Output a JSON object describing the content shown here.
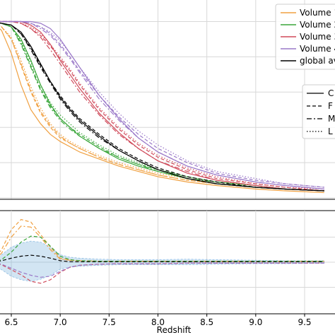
{
  "chart_data": [
    {
      "type": "line",
      "panel": "main",
      "xlim": [
        6.3,
        9.7
      ],
      "ylim": [
        0.0,
        1.05
      ],
      "grid": true,
      "xticks": [
        6.5,
        7.0,
        7.5,
        8.0,
        8.5,
        9.0,
        9.5
      ],
      "legend_colors": {
        "title": "top-right",
        "entries": [
          {
            "label": "Volume 1",
            "color": "#f0a040",
            "style": "solid"
          },
          {
            "label": "Volume 2",
            "color": "#3aa63a",
            "style": "solid"
          },
          {
            "label": "Volume 3",
            "color": "#d04a5a",
            "style": "solid"
          },
          {
            "label": "Volume 4",
            "color": "#9a78c8",
            "style": "solid"
          },
          {
            "label": "global av",
            "color": "#000000",
            "style": "solid"
          }
        ]
      },
      "legend_styles": {
        "placement": "right",
        "entries": [
          {
            "label": "C",
            "style": "solid"
          },
          {
            "label": "F",
            "style": "dashed"
          },
          {
            "label": "M",
            "style": "dashdot"
          },
          {
            "label": "L",
            "style": "dotted"
          }
        ]
      },
      "x": [
        6.3,
        6.4,
        6.5,
        6.6,
        6.7,
        6.8,
        6.9,
        7.0,
        7.1,
        7.2,
        7.4,
        7.6,
        7.8,
        8.0,
        8.3,
        8.6,
        9.0,
        9.3,
        9.7
      ],
      "series": [
        {
          "group": "Volume 1",
          "color": "#f0a040",
          "dash": "solid",
          "values": [
            1.0,
            0.95,
            0.82,
            0.64,
            0.5,
            0.42,
            0.36,
            0.32,
            0.29,
            0.26,
            0.22,
            0.18,
            0.15,
            0.12,
            0.09,
            0.07,
            0.05,
            0.04,
            0.03
          ]
        },
        {
          "group": "Volume 1",
          "color": "#f0a040",
          "dash": "dashed",
          "values": [
            1.0,
            0.97,
            0.9,
            0.75,
            0.6,
            0.48,
            0.4,
            0.34,
            0.31,
            0.28,
            0.23,
            0.19,
            0.16,
            0.13,
            0.1,
            0.08,
            0.06,
            0.05,
            0.04
          ]
        },
        {
          "group": "Volume 1",
          "color": "#f0a040",
          "dash": "dashdot",
          "values": [
            1.0,
            0.97,
            0.9,
            0.76,
            0.61,
            0.49,
            0.41,
            0.35,
            0.31,
            0.28,
            0.23,
            0.19,
            0.16,
            0.13,
            0.1,
            0.08,
            0.06,
            0.05,
            0.04
          ]
        },
        {
          "group": "Volume 1",
          "color": "#f0a040",
          "dash": "dotted",
          "values": [
            1.0,
            0.97,
            0.91,
            0.78,
            0.63,
            0.51,
            0.42,
            0.36,
            0.32,
            0.29,
            0.24,
            0.2,
            0.17,
            0.14,
            0.11,
            0.09,
            0.07,
            0.05,
            0.04
          ]
        },
        {
          "group": "Volume 2",
          "color": "#3aa63a",
          "dash": "solid",
          "values": [
            1.0,
            0.99,
            0.97,
            0.9,
            0.78,
            0.64,
            0.53,
            0.45,
            0.4,
            0.35,
            0.28,
            0.22,
            0.18,
            0.15,
            0.11,
            0.08,
            0.06,
            0.05,
            0.04
          ]
        },
        {
          "group": "Volume 2",
          "color": "#3aa63a",
          "dash": "dashed",
          "values": [
            1.0,
            0.99,
            0.97,
            0.88,
            0.75,
            0.62,
            0.52,
            0.45,
            0.4,
            0.36,
            0.29,
            0.23,
            0.19,
            0.16,
            0.12,
            0.09,
            0.07,
            0.05,
            0.04
          ]
        },
        {
          "group": "Volume 2",
          "color": "#3aa63a",
          "dash": "dashdot",
          "values": [
            1.0,
            0.99,
            0.97,
            0.87,
            0.74,
            0.61,
            0.51,
            0.44,
            0.39,
            0.35,
            0.28,
            0.23,
            0.19,
            0.15,
            0.11,
            0.09,
            0.06,
            0.05,
            0.04
          ]
        },
        {
          "group": "Volume 2",
          "color": "#3aa63a",
          "dash": "dotted",
          "values": [
            1.0,
            0.99,
            0.97,
            0.89,
            0.77,
            0.64,
            0.54,
            0.47,
            0.42,
            0.37,
            0.3,
            0.24,
            0.2,
            0.16,
            0.12,
            0.09,
            0.07,
            0.05,
            0.04
          ]
        },
        {
          "group": "Volume 3",
          "color": "#d04a5a",
          "dash": "solid",
          "values": [
            1.0,
            1.0,
            1.0,
            1.0,
            0.98,
            0.94,
            0.87,
            0.78,
            0.7,
            0.62,
            0.48,
            0.37,
            0.28,
            0.21,
            0.14,
            0.1,
            0.07,
            0.05,
            0.04
          ]
        },
        {
          "group": "Volume 3",
          "color": "#d04a5a",
          "dash": "dashed",
          "values": [
            1.0,
            1.0,
            1.0,
            0.99,
            0.96,
            0.92,
            0.86,
            0.79,
            0.72,
            0.64,
            0.5,
            0.39,
            0.3,
            0.23,
            0.16,
            0.11,
            0.08,
            0.06,
            0.04
          ]
        },
        {
          "group": "Volume 3",
          "color": "#d04a5a",
          "dash": "dashdot",
          "values": [
            1.0,
            1.0,
            1.0,
            0.99,
            0.96,
            0.91,
            0.84,
            0.76,
            0.68,
            0.6,
            0.47,
            0.36,
            0.28,
            0.21,
            0.15,
            0.1,
            0.07,
            0.05,
            0.04
          ]
        },
        {
          "group": "Volume 3",
          "color": "#d04a5a",
          "dash": "dotted",
          "values": [
            1.0,
            1.0,
            1.0,
            0.99,
            0.97,
            0.93,
            0.87,
            0.8,
            0.73,
            0.65,
            0.51,
            0.4,
            0.31,
            0.24,
            0.17,
            0.12,
            0.08,
            0.06,
            0.05
          ]
        },
        {
          "group": "Volume 4",
          "color": "#9a78c8",
          "dash": "solid",
          "values": [
            1.0,
            1.0,
            1.0,
            1.0,
            1.0,
            0.99,
            0.96,
            0.9,
            0.82,
            0.74,
            0.58,
            0.45,
            0.34,
            0.26,
            0.18,
            0.13,
            0.09,
            0.07,
            0.05
          ]
        },
        {
          "group": "Volume 4",
          "color": "#9a78c8",
          "dash": "dashed",
          "values": [
            1.0,
            1.0,
            1.0,
            1.0,
            0.99,
            0.97,
            0.93,
            0.87,
            0.8,
            0.72,
            0.58,
            0.46,
            0.36,
            0.28,
            0.2,
            0.14,
            0.1,
            0.08,
            0.06
          ]
        },
        {
          "group": "Volume 4",
          "color": "#9a78c8",
          "dash": "dashdot",
          "values": [
            1.0,
            1.0,
            1.0,
            1.0,
            0.99,
            0.96,
            0.92,
            0.86,
            0.79,
            0.71,
            0.56,
            0.44,
            0.34,
            0.26,
            0.18,
            0.13,
            0.09,
            0.07,
            0.05
          ]
        },
        {
          "group": "Volume 4",
          "color": "#9a78c8",
          "dash": "dotted",
          "values": [
            1.0,
            1.0,
            1.0,
            1.0,
            0.99,
            0.97,
            0.94,
            0.89,
            0.82,
            0.74,
            0.6,
            0.48,
            0.38,
            0.3,
            0.21,
            0.15,
            0.11,
            0.08,
            0.06
          ]
        },
        {
          "group": "global av",
          "color": "#000000",
          "dash": "solid",
          "values": [
            1.0,
            0.99,
            0.98,
            0.94,
            0.86,
            0.76,
            0.66,
            0.57,
            0.5,
            0.44,
            0.35,
            0.27,
            0.21,
            0.16,
            0.11,
            0.08,
            0.06,
            0.05,
            0.04
          ]
        },
        {
          "group": "global av",
          "color": "#000000",
          "dash": "dashed",
          "values": [
            1.0,
            0.99,
            0.98,
            0.93,
            0.85,
            0.75,
            0.66,
            0.58,
            0.51,
            0.45,
            0.36,
            0.28,
            0.22,
            0.17,
            0.12,
            0.09,
            0.06,
            0.05,
            0.04
          ]
        },
        {
          "group": "global av",
          "color": "#000000",
          "dash": "dashdot",
          "values": [
            1.0,
            0.99,
            0.98,
            0.93,
            0.84,
            0.74,
            0.65,
            0.56,
            0.49,
            0.43,
            0.34,
            0.27,
            0.21,
            0.16,
            0.11,
            0.08,
            0.06,
            0.05,
            0.04
          ]
        }
      ]
    },
    {
      "type": "line",
      "panel": "residual",
      "xlabel": "Redshift",
      "xlim": [
        6.3,
        9.7
      ],
      "ylim": [
        -1.0,
        1.0
      ],
      "grid": true,
      "xticks": [
        6.5,
        7.0,
        7.5,
        8.0,
        8.5,
        9.0,
        9.5
      ],
      "x": [
        6.3,
        6.4,
        6.5,
        6.6,
        6.7,
        6.8,
        6.9,
        7.0,
        7.1,
        7.2,
        7.4,
        7.6,
        7.8,
        8.0,
        8.3,
        8.6,
        9.0,
        9.3,
        9.7
      ],
      "band": {
        "color": "#6aa8d8",
        "upper": [
          0.05,
          0.15,
          0.3,
          0.38,
          0.42,
          0.4,
          0.3,
          0.15,
          0.1,
          0.08,
          0.06,
          0.05,
          0.05,
          0.05,
          0.06,
          0.05,
          0.04,
          0.03,
          0.03
        ],
        "lower": [
          -0.05,
          -0.15,
          -0.28,
          -0.35,
          -0.38,
          -0.34,
          -0.26,
          -0.14,
          -0.1,
          -0.08,
          -0.06,
          -0.05,
          -0.05,
          -0.05,
          -0.05,
          -0.04,
          -0.03,
          -0.03,
          -0.02
        ]
      },
      "series": [
        {
          "group": "Volume 1",
          "color": "#f0a040",
          "dash": "dashed",
          "values": [
            0.0,
            0.25,
            0.65,
            0.85,
            0.8,
            0.55,
            0.3,
            0.08,
            0.04,
            0.03,
            0.02,
            0.02,
            0.02,
            0.02,
            0.02,
            0.02,
            0.02,
            0.02,
            0.02
          ]
        },
        {
          "group": "Volume 1",
          "color": "#f0a040",
          "dash": "dashdot",
          "values": [
            0.0,
            0.18,
            0.5,
            0.72,
            0.7,
            0.5,
            0.25,
            0.06,
            0.04,
            0.03,
            0.02,
            0.02,
            0.02,
            0.02,
            0.02,
            0.02,
            0.02,
            0.02,
            0.02
          ]
        },
        {
          "group": "Volume 2",
          "color": "#3aa63a",
          "dash": "dashed",
          "values": [
            0.0,
            0.05,
            0.2,
            0.4,
            0.52,
            0.5,
            0.32,
            0.12,
            0.05,
            0.03,
            0.02,
            0.02,
            0.02,
            0.02,
            0.02,
            0.02,
            0.02,
            0.02,
            0.02
          ]
        },
        {
          "group": "Volume 3",
          "color": "#d04a5a",
          "dash": "dashed",
          "values": [
            0.0,
            -0.05,
            -0.15,
            -0.25,
            -0.38,
            -0.42,
            -0.35,
            -0.2,
            -0.1,
            -0.06,
            -0.04,
            -0.03,
            -0.03,
            -0.03,
            -0.02,
            -0.02,
            -0.02,
            -0.02,
            -0.02
          ]
        },
        {
          "group": "Volume 4",
          "color": "#9a78c8",
          "dash": "dashed",
          "values": [
            0.0,
            -0.04,
            -0.12,
            -0.2,
            -0.26,
            -0.3,
            -0.28,
            -0.18,
            -0.1,
            -0.06,
            -0.04,
            -0.03,
            -0.03,
            -0.03,
            -0.02,
            -0.02,
            -0.02,
            -0.02,
            -0.02
          ]
        },
        {
          "group": "global av",
          "color": "#000000",
          "dash": "dashed",
          "values": [
            0.0,
            0.03,
            0.08,
            0.12,
            0.14,
            0.12,
            0.08,
            0.03,
            0.01,
            0.01,
            0.01,
            0.01,
            0.01,
            0.01,
            0.01,
            0.01,
            0.01,
            0.01,
            0.01
          ]
        }
      ]
    }
  ]
}
